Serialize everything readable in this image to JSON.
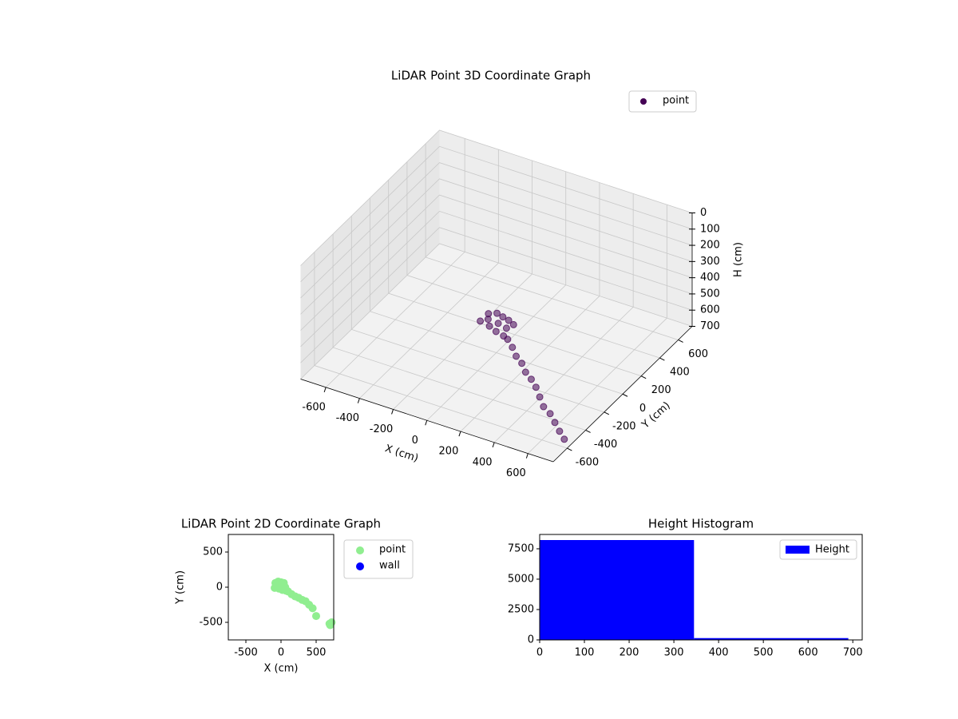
{
  "chart_data": [
    {
      "type": "scatter3d",
      "title": "LiDAR Point 3D Coordinate Graph",
      "xlabel": "X (cm)",
      "ylabel": "Y (cm)",
      "zlabel": "H (cm)",
      "xlim": [
        -750,
        750
      ],
      "ylim": [
        -750,
        750
      ],
      "zlim": [
        700,
        0
      ],
      "xticks": [
        -600,
        -400,
        -200,
        0,
        200,
        400,
        600
      ],
      "yticks": [
        -600,
        -400,
        -200,
        0,
        200,
        400,
        600
      ],
      "zticks": [
        0,
        100,
        200,
        300,
        400,
        500,
        600,
        700
      ],
      "grid": true,
      "legend": "upper right",
      "series": [
        {
          "name": "point",
          "color": "#440154",
          "x": [
            -80,
            -40,
            0,
            40,
            80,
            -60,
            0,
            60,
            -90,
            -30,
            20,
            70,
            100,
            150,
            200,
            250,
            300,
            350,
            400,
            450,
            500,
            550,
            600,
            650,
            700
          ],
          "y": [
            60,
            80,
            70,
            60,
            40,
            20,
            20,
            0,
            -10,
            -20,
            -40,
            -50,
            -60,
            -100,
            -150,
            -180,
            -230,
            -260,
            -300,
            -350,
            -400,
            -420,
            -460,
            -500,
            -540
          ],
          "z": [
            520,
            515,
            518,
            520,
            522,
            525,
            530,
            528,
            530,
            535,
            540,
            545,
            550,
            560,
            570,
            580,
            590,
            600,
            610,
            625,
            640,
            655,
            670,
            685,
            695
          ]
        }
      ]
    },
    {
      "type": "scatter",
      "title": "LiDAR Point 2D Coordinate Graph",
      "xlabel": "X (cm)",
      "ylabel": "Y (cm)",
      "xlim": [
        -750,
        750
      ],
      "ylim": [
        -750,
        750
      ],
      "xticks": [
        -500,
        0,
        500
      ],
      "yticks": [
        -500,
        0,
        500
      ],
      "legend": "outside right",
      "series": [
        {
          "name": "point",
          "color": "#90ee90",
          "x": [
            -80,
            -40,
            0,
            40,
            -60,
            0,
            60,
            -90,
            -30,
            20,
            70,
            100,
            150,
            200,
            250,
            300,
            350,
            400,
            450,
            500,
            690,
            720,
            700
          ],
          "y": [
            60,
            80,
            70,
            60,
            20,
            20,
            0,
            -10,
            -20,
            -40,
            -50,
            -60,
            -100,
            -130,
            -150,
            -180,
            -200,
            -250,
            -300,
            -410,
            -520,
            -500,
            -540
          ]
        },
        {
          "name": "wall",
          "color": "#0000ff",
          "x": [],
          "y": []
        }
      ]
    },
    {
      "type": "histogram",
      "title": "Height Histogram",
      "bins": [
        0,
        345,
        690
      ],
      "xlim": [
        0,
        721
      ],
      "ylim": [
        0,
        8680
      ],
      "xticks": [
        0,
        100,
        200,
        300,
        400,
        500,
        600,
        700
      ],
      "yticks": [
        0,
        2500,
        5000,
        7500
      ],
      "legend": "upper right",
      "series": [
        {
          "name": "Height",
          "color": "#0000ff",
          "values": [
            8220,
            150
          ]
        }
      ]
    }
  ]
}
